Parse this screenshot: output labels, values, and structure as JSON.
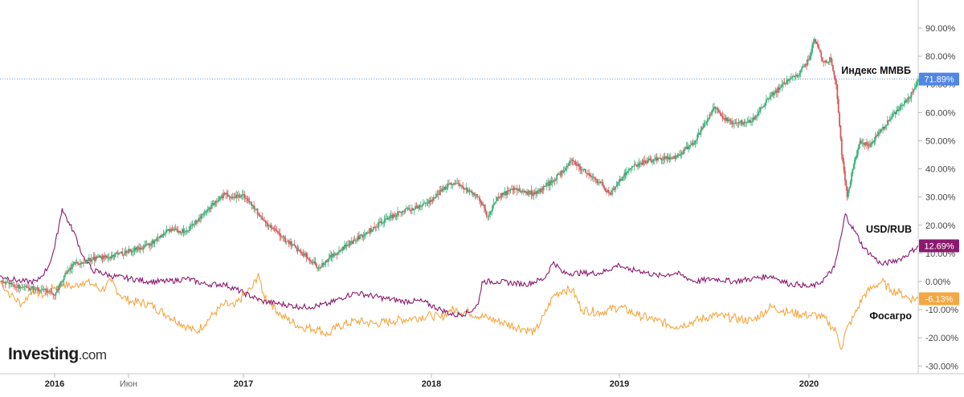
{
  "chart_data": {
    "type": "line",
    "y_unit": "%",
    "x_ticks": [
      "2016",
      "Июн",
      "2017",
      "2018",
      "2019",
      "2020"
    ],
    "y_ticks": [
      90,
      80,
      70,
      60,
      50,
      40,
      30,
      20,
      10,
      0,
      -10,
      -20,
      -30
    ],
    "y_tick_labels": [
      "90.00%",
      "80.00%",
      "70.00%",
      "60.00%",
      "50.00%",
      "40.00%",
      "30.00%",
      "20.00%",
      "10.00%",
      "0.00%",
      "-10.00%",
      "-20.00%",
      "-30.00%"
    ],
    "ylim": [
      -32,
      99
    ],
    "xlim": [
      2015.75,
      2020.6
    ],
    "grid": false,
    "series": [
      {
        "name": "Индекс ММВБ",
        "style": "candlestick",
        "color_up": "#3bb17a",
        "color_down": "#d65a5a",
        "last_value": 71.89,
        "last_label": "71.89%",
        "tag_color": "#4f86e8",
        "points": [
          [
            2015.75,
            0
          ],
          [
            2015.85,
            -2
          ],
          [
            2015.95,
            -3
          ],
          [
            2016.0,
            -5
          ],
          [
            2016.05,
            2
          ],
          [
            2016.1,
            6
          ],
          [
            2016.2,
            8
          ],
          [
            2016.3,
            9
          ],
          [
            2016.4,
            11
          ],
          [
            2016.5,
            13
          ],
          [
            2016.6,
            18
          ],
          [
            2016.7,
            18
          ],
          [
            2016.8,
            25
          ],
          [
            2016.9,
            31
          ],
          [
            2016.95,
            30
          ],
          [
            2017.0,
            31
          ],
          [
            2017.05,
            27
          ],
          [
            2017.1,
            22
          ],
          [
            2017.2,
            16
          ],
          [
            2017.3,
            11
          ],
          [
            2017.4,
            5
          ],
          [
            2017.45,
            8
          ],
          [
            2017.55,
            13
          ],
          [
            2017.65,
            17
          ],
          [
            2017.75,
            22
          ],
          [
            2017.85,
            25
          ],
          [
            2017.95,
            27
          ],
          [
            2018.0,
            29
          ],
          [
            2018.05,
            32
          ],
          [
            2018.1,
            35
          ],
          [
            2018.15,
            34
          ],
          [
            2018.25,
            30
          ],
          [
            2018.3,
            23
          ],
          [
            2018.35,
            30
          ],
          [
            2018.45,
            33
          ],
          [
            2018.55,
            31
          ],
          [
            2018.65,
            36
          ],
          [
            2018.75,
            43
          ],
          [
            2018.85,
            37
          ],
          [
            2018.9,
            35
          ],
          [
            2018.95,
            31
          ],
          [
            2019.05,
            40
          ],
          [
            2019.15,
            43
          ],
          [
            2019.3,
            44
          ],
          [
            2019.4,
            50
          ],
          [
            2019.5,
            62
          ],
          [
            2019.55,
            58
          ],
          [
            2019.6,
            56
          ],
          [
            2019.7,
            57
          ],
          [
            2019.75,
            62
          ],
          [
            2019.8,
            66
          ],
          [
            2019.9,
            72
          ],
          [
            2019.95,
            74
          ],
          [
            2020.0,
            79
          ],
          [
            2020.03,
            86
          ],
          [
            2020.08,
            78
          ],
          [
            2020.12,
            79
          ],
          [
            2020.15,
            70
          ],
          [
            2020.18,
            45
          ],
          [
            2020.21,
            30
          ],
          [
            2020.24,
            40
          ],
          [
            2020.28,
            50
          ],
          [
            2020.33,
            48
          ],
          [
            2020.4,
            54
          ],
          [
            2020.45,
            58
          ],
          [
            2020.5,
            62
          ],
          [
            2020.55,
            65
          ],
          [
            2020.6,
            72
          ]
        ]
      },
      {
        "name": "USD/RUB",
        "color": "#8b1a6e",
        "last_value": 12.69,
        "last_label": "12.69%",
        "tag_color": "#8b1a6e",
        "points": [
          [
            2015.75,
            2
          ],
          [
            2015.85,
            0
          ],
          [
            2015.92,
            0
          ],
          [
            2015.97,
            5
          ],
          [
            2016.0,
            12
          ],
          [
            2016.04,
            26
          ],
          [
            2016.08,
            20
          ],
          [
            2016.1,
            18
          ],
          [
            2016.15,
            9
          ],
          [
            2016.2,
            4
          ],
          [
            2016.3,
            2
          ],
          [
            2016.4,
            1
          ],
          [
            2016.5,
            0
          ],
          [
            2016.6,
            0
          ],
          [
            2016.7,
            1
          ],
          [
            2016.8,
            -1
          ],
          [
            2016.9,
            -1
          ],
          [
            2017.0,
            -4
          ],
          [
            2017.1,
            -7
          ],
          [
            2017.2,
            -8
          ],
          [
            2017.3,
            -9
          ],
          [
            2017.35,
            -9
          ],
          [
            2017.45,
            -8
          ],
          [
            2017.55,
            -5
          ],
          [
            2017.6,
            -4
          ],
          [
            2017.75,
            -6
          ],
          [
            2017.85,
            -7
          ],
          [
            2017.95,
            -7
          ],
          [
            2018.05,
            -10
          ],
          [
            2018.12,
            -12
          ],
          [
            2018.2,
            -11
          ],
          [
            2018.25,
            -8
          ],
          [
            2018.27,
            0
          ],
          [
            2018.35,
            0
          ],
          [
            2018.5,
            -1
          ],
          [
            2018.6,
            1
          ],
          [
            2018.65,
            7
          ],
          [
            2018.7,
            3
          ],
          [
            2018.8,
            3
          ],
          [
            2018.9,
            3
          ],
          [
            2019.0,
            6
          ],
          [
            2019.05,
            4
          ],
          [
            2019.1,
            4
          ],
          [
            2019.2,
            2
          ],
          [
            2019.3,
            3
          ],
          [
            2019.4,
            0
          ],
          [
            2019.5,
            1
          ],
          [
            2019.6,
            0
          ],
          [
            2019.7,
            1
          ],
          [
            2019.8,
            2
          ],
          [
            2019.9,
            -1
          ],
          [
            2019.95,
            -1
          ],
          [
            2020.0,
            -2
          ],
          [
            2020.05,
            -1
          ],
          [
            2020.1,
            2
          ],
          [
            2020.14,
            5
          ],
          [
            2020.18,
            17
          ],
          [
            2020.2,
            24
          ],
          [
            2020.23,
            20
          ],
          [
            2020.26,
            17
          ],
          [
            2020.3,
            12
          ],
          [
            2020.35,
            9
          ],
          [
            2020.4,
            6
          ],
          [
            2020.45,
            7
          ],
          [
            2020.5,
            8
          ],
          [
            2020.55,
            10
          ],
          [
            2020.6,
            12.69
          ]
        ]
      },
      {
        "name": "Фосагро",
        "color": "#f5a742",
        "last_value": -6.13,
        "last_label": "-6.13%",
        "tag_color": "#f5a742",
        "points": [
          [
            2015.75,
            0
          ],
          [
            2015.8,
            -5
          ],
          [
            2015.85,
            -8
          ],
          [
            2015.9,
            -3
          ],
          [
            2015.95,
            -5
          ],
          [
            2016.0,
            -2
          ],
          [
            2016.05,
            -1
          ],
          [
            2016.1,
            -2
          ],
          [
            2016.15,
            0
          ],
          [
            2016.2,
            -1
          ],
          [
            2016.25,
            -3
          ],
          [
            2016.3,
            0
          ],
          [
            2016.35,
            -5
          ],
          [
            2016.4,
            -7
          ],
          [
            2016.5,
            -8
          ],
          [
            2016.6,
            -12
          ],
          [
            2016.7,
            -16
          ],
          [
            2016.75,
            -18
          ],
          [
            2016.85,
            -11
          ],
          [
            2016.9,
            -8
          ],
          [
            2016.95,
            -9
          ],
          [
            2017.0,
            -5
          ],
          [
            2017.05,
            -2
          ],
          [
            2017.08,
            3
          ],
          [
            2017.1,
            -4
          ],
          [
            2017.15,
            -8
          ],
          [
            2017.2,
            -12
          ],
          [
            2017.3,
            -16
          ],
          [
            2017.4,
            -17
          ],
          [
            2017.45,
            -19
          ],
          [
            2017.5,
            -16
          ],
          [
            2017.6,
            -14
          ],
          [
            2017.7,
            -15
          ],
          [
            2017.8,
            -14
          ],
          [
            2017.9,
            -13
          ],
          [
            2018.0,
            -12
          ],
          [
            2018.05,
            -13
          ],
          [
            2018.1,
            -10
          ],
          [
            2018.2,
            -11
          ],
          [
            2018.3,
            -13
          ],
          [
            2018.4,
            -15
          ],
          [
            2018.5,
            -17
          ],
          [
            2018.55,
            -18
          ],
          [
            2018.6,
            -12
          ],
          [
            2018.65,
            -5
          ],
          [
            2018.7,
            -3
          ],
          [
            2018.75,
            -3
          ],
          [
            2018.8,
            -10
          ],
          [
            2018.9,
            -11
          ],
          [
            2019.0,
            -9
          ],
          [
            2019.1,
            -12
          ],
          [
            2019.2,
            -14
          ],
          [
            2019.3,
            -16
          ],
          [
            2019.4,
            -14
          ],
          [
            2019.5,
            -12
          ],
          [
            2019.6,
            -13
          ],
          [
            2019.7,
            -14
          ],
          [
            2019.8,
            -9
          ],
          [
            2019.9,
            -11
          ],
          [
            2020.0,
            -12
          ],
          [
            2020.05,
            -12
          ],
          [
            2020.1,
            -14
          ],
          [
            2020.15,
            -18
          ],
          [
            2020.18,
            -24
          ],
          [
            2020.2,
            -18
          ],
          [
            2020.25,
            -12
          ],
          [
            2020.3,
            -5
          ],
          [
            2020.35,
            -2
          ],
          [
            2020.4,
            0
          ],
          [
            2020.45,
            -3
          ],
          [
            2020.5,
            -4
          ],
          [
            2020.55,
            -6
          ],
          [
            2020.6,
            -6.13
          ]
        ]
      }
    ],
    "reference_line": {
      "value": 71.89,
      "color": "#4f86e8",
      "style": "dotted"
    }
  },
  "branding": {
    "name": "Investing",
    "suffix": ".com"
  }
}
